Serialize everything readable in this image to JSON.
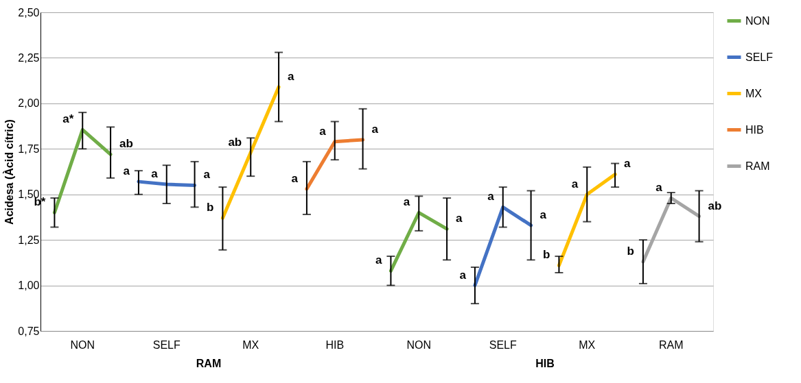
{
  "chart_data": {
    "type": "line",
    "ylabel": "Acidesa (Àcid cítric)",
    "categories": [
      null,
      "NON",
      null,
      null,
      "SELF",
      null,
      null,
      "MX",
      null,
      null,
      "HIB",
      null,
      null,
      "NON",
      null,
      null,
      "SELF",
      null,
      null,
      "MX",
      null,
      null,
      "RAM",
      null
    ],
    "ylim": [
      0.75,
      2.5
    ],
    "yticks": [
      {
        "value": 0.75,
        "label": "0,75"
      },
      {
        "value": 1.0,
        "label": "1,00"
      },
      {
        "value": 1.25,
        "label": "1,25"
      },
      {
        "value": 1.5,
        "label": "1,50"
      },
      {
        "value": 1.75,
        "label": "1,75"
      },
      {
        "value": 2.0,
        "label": "2,00"
      },
      {
        "value": 2.25,
        "label": "2,25"
      },
      {
        "value": 2.5,
        "label": "2,50"
      }
    ],
    "grid": "y",
    "legend": "right",
    "marker": "none",
    "line_style": "solid",
    "series": [
      {
        "name": "NON",
        "color": "#70ad47",
        "values": [
          1.4,
          1.855,
          1.72,
          null,
          null,
          null,
          null,
          null,
          null,
          null,
          null,
          null,
          1.08,
          1.4,
          1.31,
          null,
          null,
          null,
          null,
          null,
          null,
          null,
          null,
          null
        ],
        "errors": [
          [
            1.32,
            1.48
          ],
          [
            1.75,
            1.95
          ],
          [
            1.59,
            1.87
          ],
          null,
          null,
          null,
          null,
          null,
          null,
          null,
          null,
          null,
          [
            1.0,
            1.16
          ],
          [
            1.3,
            1.49
          ],
          [
            1.14,
            1.48
          ],
          null,
          null,
          null,
          null,
          null,
          null,
          null,
          null,
          null
        ],
        "value_labels": [
          "b*",
          "a*",
          "ab",
          null,
          null,
          null,
          null,
          null,
          null,
          null,
          null,
          null,
          "a",
          "a",
          "a",
          null,
          null,
          null,
          null,
          null,
          null,
          null,
          null,
          null
        ]
      },
      {
        "name": "SELF",
        "color": "#4472c4",
        "values": [
          null,
          null,
          null,
          1.57,
          1.555,
          1.55,
          null,
          null,
          null,
          null,
          null,
          null,
          null,
          null,
          null,
          1.0,
          1.43,
          1.33,
          null,
          null,
          null,
          null,
          null,
          null
        ],
        "errors": [
          null,
          null,
          null,
          [
            1.5,
            1.63
          ],
          [
            1.45,
            1.66
          ],
          [
            1.43,
            1.68
          ],
          null,
          null,
          null,
          null,
          null,
          null,
          null,
          null,
          null,
          [
            0.9,
            1.1
          ],
          [
            1.32,
            1.54
          ],
          [
            1.14,
            1.52
          ],
          null,
          null,
          null,
          null,
          null,
          null
        ],
        "value_labels": [
          null,
          null,
          null,
          "a",
          "a",
          "a",
          null,
          null,
          null,
          null,
          null,
          null,
          null,
          null,
          null,
          "a",
          "a",
          "a",
          null,
          null,
          null,
          null,
          null,
          null
        ]
      },
      {
        "name": "MX",
        "color": "#ffc000",
        "values": [
          null,
          null,
          null,
          null,
          null,
          null,
          1.37,
          1.73,
          2.09,
          null,
          null,
          null,
          null,
          null,
          null,
          null,
          null,
          null,
          1.11,
          1.5,
          1.61,
          null,
          null,
          null
        ],
        "errors": [
          null,
          null,
          null,
          null,
          null,
          null,
          [
            1.195,
            1.54
          ],
          [
            1.6,
            1.81
          ],
          [
            1.9,
            2.28
          ],
          null,
          null,
          null,
          null,
          null,
          null,
          null,
          null,
          null,
          [
            1.07,
            1.16
          ],
          [
            1.35,
            1.65
          ],
          [
            1.54,
            1.67
          ],
          null,
          null,
          null
        ],
        "value_labels": [
          null,
          null,
          null,
          null,
          null,
          null,
          "b",
          "ab",
          "a",
          null,
          null,
          null,
          null,
          null,
          null,
          null,
          null,
          null,
          "b",
          "a",
          "a",
          null,
          null,
          null
        ]
      },
      {
        "name": "HIB",
        "color": "#ed7d31",
        "values": [
          null,
          null,
          null,
          null,
          null,
          null,
          null,
          null,
          null,
          1.53,
          1.79,
          1.8,
          null,
          null,
          null,
          null,
          null,
          null,
          null,
          null,
          null,
          null,
          null,
          null
        ],
        "errors": [
          null,
          null,
          null,
          null,
          null,
          null,
          null,
          null,
          null,
          [
            1.39,
            1.68
          ],
          [
            1.69,
            1.9
          ],
          [
            1.64,
            1.97
          ],
          null,
          null,
          null,
          null,
          null,
          null,
          null,
          null,
          null,
          null,
          null,
          null
        ],
        "value_labels": [
          null,
          null,
          null,
          null,
          null,
          null,
          null,
          null,
          null,
          "a",
          "a",
          "a",
          null,
          null,
          null,
          null,
          null,
          null,
          null,
          null,
          null,
          null,
          null,
          null
        ]
      },
      {
        "name": "RAM",
        "color": "#a5a5a5",
        "values": [
          null,
          null,
          null,
          null,
          null,
          null,
          null,
          null,
          null,
          null,
          null,
          null,
          null,
          null,
          null,
          null,
          null,
          null,
          null,
          null,
          null,
          1.13,
          1.48,
          1.38
        ],
        "errors": [
          null,
          null,
          null,
          null,
          null,
          null,
          null,
          null,
          null,
          null,
          null,
          null,
          null,
          null,
          null,
          null,
          null,
          null,
          null,
          null,
          null,
          [
            1.01,
            1.25
          ],
          [
            1.45,
            1.51
          ],
          [
            1.24,
            1.52
          ]
        ],
        "value_labels": [
          null,
          null,
          null,
          null,
          null,
          null,
          null,
          null,
          null,
          null,
          null,
          null,
          null,
          null,
          null,
          null,
          null,
          null,
          null,
          null,
          null,
          "b",
          "a",
          "ab"
        ]
      }
    ],
    "annotations": [
      "RAM",
      "HIB"
    ]
  }
}
